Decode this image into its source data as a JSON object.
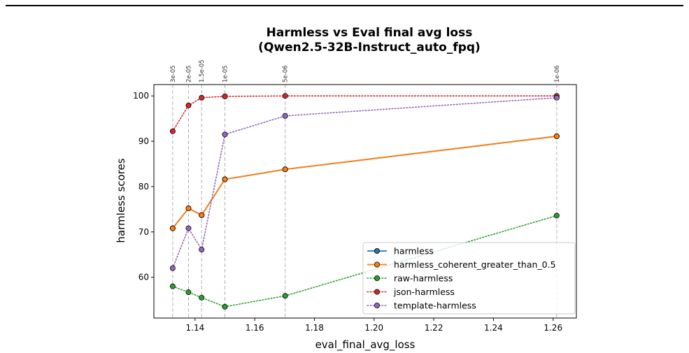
{
  "chart_data": {
    "type": "line",
    "title": "Harmless vs Eval final avg loss",
    "subtitle": "(Qwen2.5-32B-Instruct_auto_fpq)",
    "xlabel": "eval_final_avg_loss",
    "ylabel": "harmless scores",
    "xlim": [
      1.1262,
      1.2678
    ],
    "ylim": [
      51,
      102.5
    ],
    "xticks": [
      1.14,
      1.16,
      1.18,
      1.2,
      1.22,
      1.24,
      1.26
    ],
    "xtick_labels": [
      "1.14",
      "1.16",
      "1.18",
      "1.20",
      "1.22",
      "1.24",
      "1.26"
    ],
    "yticks": [
      60,
      70,
      80,
      90,
      100
    ],
    "ytick_labels": [
      "60",
      "70",
      "80",
      "90",
      "100"
    ],
    "grid": false,
    "legend_position": "lower-right",
    "x": [
      1.1325,
      1.1378,
      1.1422,
      1.15,
      1.1702,
      1.2612
    ],
    "annotations": [
      "3e-05",
      "2e-05",
      "1.5e-05",
      "1e-05",
      "5e-06",
      "1e-06"
    ],
    "series": [
      {
        "name": "harmless",
        "color": "#1f77b4",
        "style": "solid",
        "values": [
          70.8,
          75.2,
          73.7,
          81.6,
          83.8,
          91.1
        ]
      },
      {
        "name": "harmless_coherent_greater_than_0.5",
        "color": "#ff7f0e",
        "style": "solid",
        "values": [
          70.8,
          75.2,
          73.7,
          81.6,
          83.8,
          91.1
        ]
      },
      {
        "name": "raw-harmless",
        "color": "#2ca02c",
        "style": "dotted",
        "values": [
          58.0,
          56.7,
          55.5,
          53.5,
          55.9,
          73.6
        ]
      },
      {
        "name": "json-harmless",
        "color": "#d62728",
        "style": "dotted",
        "values": [
          92.2,
          97.9,
          99.6,
          99.9,
          100.0,
          100.0
        ]
      },
      {
        "name": "template-harmless",
        "color": "#9467bd",
        "style": "dotted",
        "values": [
          62.0,
          70.8,
          66.1,
          91.5,
          95.6,
          99.6
        ]
      }
    ]
  }
}
